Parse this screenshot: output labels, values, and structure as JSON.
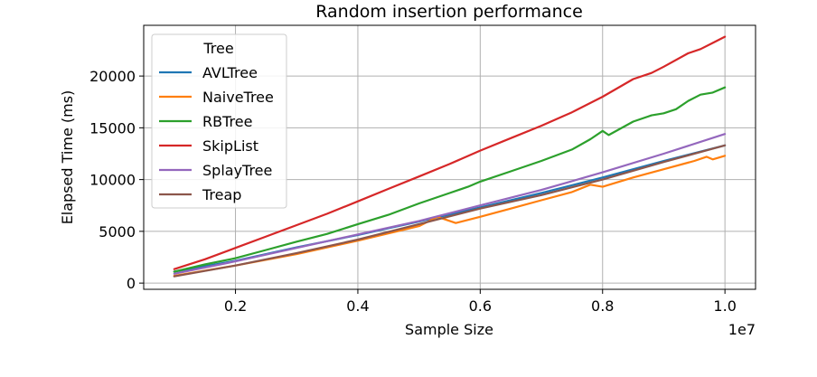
{
  "chart_data": {
    "type": "line",
    "title": "Random insertion performance",
    "xlabel": "Sample Size",
    "ylabel": "Elapsed Time (ms)",
    "x_offset_label": "1e7",
    "xlim": [
      0.05,
      1.05
    ],
    "ylim": [
      -600,
      24900
    ],
    "xticks": [
      {
        "value": 0.2,
        "label": "0.2"
      },
      {
        "value": 0.4,
        "label": "0.4"
      },
      {
        "value": 0.6,
        "label": "0.6"
      },
      {
        "value": 0.8,
        "label": "0.8"
      },
      {
        "value": 1.0,
        "label": "1.0"
      }
    ],
    "yticks": [
      {
        "value": 0,
        "label": "0"
      },
      {
        "value": 5000,
        "label": "5000"
      },
      {
        "value": 10000,
        "label": "10000"
      },
      {
        "value": 15000,
        "label": "15000"
      },
      {
        "value": 20000,
        "label": "20000"
      }
    ],
    "grid": true,
    "legend": {
      "title": "Tree",
      "position": "top-left"
    },
    "series": [
      {
        "name": "AVLTree",
        "color": "#1f77b4",
        "points": [
          [
            0.1,
            1100
          ],
          [
            0.2,
            2150
          ],
          [
            0.3,
            3450
          ],
          [
            0.4,
            4650
          ],
          [
            0.5,
            5950
          ],
          [
            0.6,
            7300
          ],
          [
            0.7,
            8700
          ],
          [
            0.8,
            10200
          ],
          [
            0.9,
            11800
          ],
          [
            1.0,
            13300
          ]
        ]
      },
      {
        "name": "NaiveTree",
        "color": "#ff7f0e",
        "points": [
          [
            0.1,
            700
          ],
          [
            0.2,
            1700
          ],
          [
            0.3,
            2800
          ],
          [
            0.4,
            4100
          ],
          [
            0.5,
            5500
          ],
          [
            0.53,
            6400
          ],
          [
            0.56,
            5800
          ],
          [
            0.6,
            6400
          ],
          [
            0.65,
            7200
          ],
          [
            0.7,
            8000
          ],
          [
            0.75,
            8800
          ],
          [
            0.78,
            9500
          ],
          [
            0.8,
            9300
          ],
          [
            0.85,
            10200
          ],
          [
            0.9,
            11000
          ],
          [
            0.95,
            11800
          ],
          [
            0.97,
            12200
          ],
          [
            0.98,
            11950
          ],
          [
            1.0,
            12300
          ]
        ]
      },
      {
        "name": "RBTree",
        "color": "#2ca02c",
        "points": [
          [
            0.1,
            1100
          ],
          [
            0.15,
            1800
          ],
          [
            0.2,
            2400
          ],
          [
            0.25,
            3200
          ],
          [
            0.3,
            4000
          ],
          [
            0.35,
            4750
          ],
          [
            0.4,
            5700
          ],
          [
            0.45,
            6600
          ],
          [
            0.5,
            7700
          ],
          [
            0.55,
            8700
          ],
          [
            0.58,
            9300
          ],
          [
            0.6,
            9800
          ],
          [
            0.65,
            10800
          ],
          [
            0.7,
            11800
          ],
          [
            0.75,
            12900
          ],
          [
            0.78,
            13900
          ],
          [
            0.8,
            14700
          ],
          [
            0.81,
            14300
          ],
          [
            0.85,
            15600
          ],
          [
            0.88,
            16200
          ],
          [
            0.9,
            16400
          ],
          [
            0.92,
            16800
          ],
          [
            0.94,
            17600
          ],
          [
            0.96,
            18200
          ],
          [
            0.98,
            18400
          ],
          [
            1.0,
            18900
          ]
        ]
      },
      {
        "name": "SkipList",
        "color": "#d62728",
        "points": [
          [
            0.1,
            1350
          ],
          [
            0.15,
            2300
          ],
          [
            0.2,
            3400
          ],
          [
            0.25,
            4500
          ],
          [
            0.3,
            5600
          ],
          [
            0.35,
            6700
          ],
          [
            0.4,
            7900
          ],
          [
            0.45,
            9100
          ],
          [
            0.5,
            10300
          ],
          [
            0.55,
            11500
          ],
          [
            0.6,
            12800
          ],
          [
            0.65,
            14000
          ],
          [
            0.7,
            15200
          ],
          [
            0.75,
            16500
          ],
          [
            0.8,
            18000
          ],
          [
            0.85,
            19700
          ],
          [
            0.88,
            20300
          ],
          [
            0.9,
            20900
          ],
          [
            0.94,
            22200
          ],
          [
            0.96,
            22600
          ],
          [
            0.98,
            23200
          ],
          [
            1.0,
            23800
          ]
        ]
      },
      {
        "name": "SplayTree",
        "color": "#9467bd",
        "points": [
          [
            0.1,
            900
          ],
          [
            0.2,
            2100
          ],
          [
            0.3,
            3400
          ],
          [
            0.4,
            4700
          ],
          [
            0.5,
            6000
          ],
          [
            0.6,
            7500
          ],
          [
            0.7,
            9000
          ],
          [
            0.8,
            10700
          ],
          [
            0.9,
            12500
          ],
          [
            1.0,
            14400
          ]
        ]
      },
      {
        "name": "Treap",
        "color": "#8c564b",
        "points": [
          [
            0.1,
            650
          ],
          [
            0.2,
            1700
          ],
          [
            0.3,
            2900
          ],
          [
            0.4,
            4200
          ],
          [
            0.5,
            5700
          ],
          [
            0.6,
            7200
          ],
          [
            0.7,
            8500
          ],
          [
            0.8,
            10000
          ],
          [
            0.9,
            11700
          ],
          [
            1.0,
            13300
          ]
        ]
      }
    ]
  }
}
